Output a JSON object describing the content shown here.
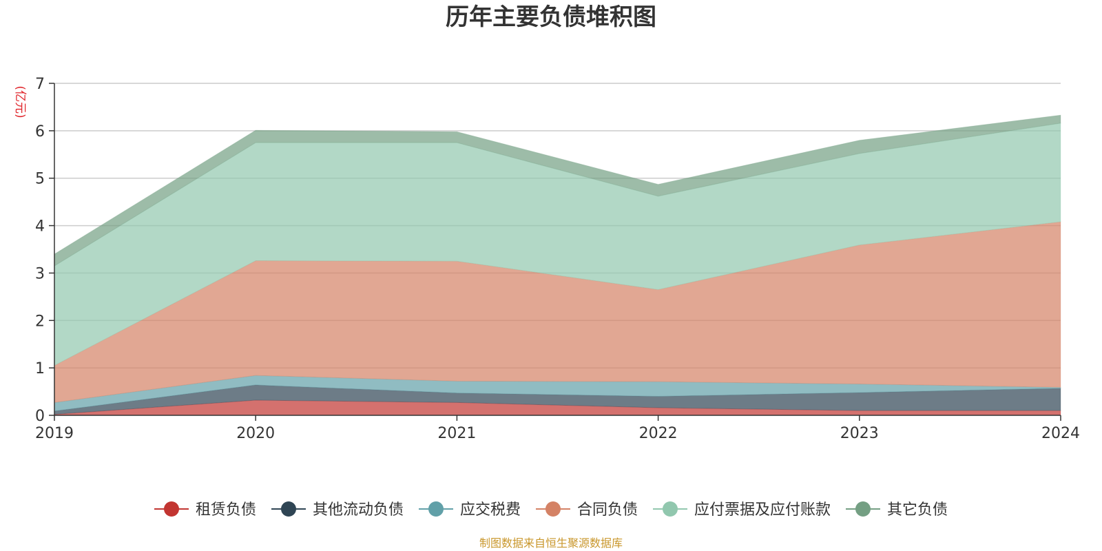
{
  "chart_data": {
    "type": "area",
    "stacked": true,
    "title": "历年主要负债堆积图",
    "unit_label": "(亿元)",
    "x": [
      "2019",
      "2020",
      "2021",
      "2022",
      "2023",
      "2024"
    ],
    "ylim": [
      0,
      7
    ],
    "yticks": [
      0,
      1,
      2,
      3,
      4,
      5,
      6,
      7
    ],
    "grid": true,
    "legend_position": "bottom",
    "series": [
      {
        "name": "租赁负债",
        "color": "#c23531",
        "values": [
          0.02,
          0.32,
          0.27,
          0.16,
          0.1,
          0.1
        ]
      },
      {
        "name": "其他流动负债",
        "color": "#2f4554",
        "values": [
          0.07,
          0.32,
          0.2,
          0.24,
          0.38,
          0.47
        ]
      },
      {
        "name": "应交税费",
        "color": "#61a0a8",
        "values": [
          0.18,
          0.2,
          0.25,
          0.31,
          0.18,
          0.02
        ]
      },
      {
        "name": "合同负债",
        "color": "#d48265",
        "values": [
          0.78,
          2.42,
          2.53,
          1.94,
          2.93,
          3.49
        ]
      },
      {
        "name": "应付票据及应付账款",
        "color": "#91c7ae",
        "values": [
          2.1,
          2.49,
          2.5,
          1.97,
          1.93,
          2.08
        ]
      },
      {
        "name": "其它负债",
        "color": "#749f83",
        "values": [
          0.25,
          0.26,
          0.23,
          0.25,
          0.28,
          0.17
        ]
      }
    ],
    "source": "制图数据来自恒生聚源数据库"
  },
  "colors": {
    "title": "#333333",
    "unit": "#e0242a",
    "source": "#c9972c",
    "axis": "#333333",
    "grid": "#cccccc"
  }
}
